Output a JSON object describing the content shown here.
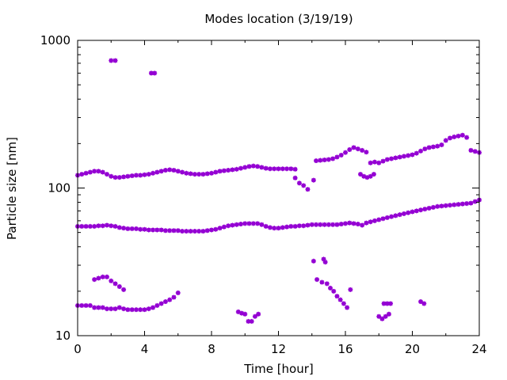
{
  "chart_data": {
    "type": "scatter",
    "title": "Modes location (3/19/19)",
    "xlabel": "Time [hour]",
    "ylabel": "Particle size [nm]",
    "xlim": [
      0,
      24
    ],
    "ylim": [
      10,
      1000
    ],
    "y_scale": "log",
    "grid": false,
    "legend": "none",
    "x_ticks": [
      0,
      4,
      8,
      12,
      16,
      20,
      24
    ],
    "x_tick_labels": [
      "0",
      "4",
      "8",
      "12",
      "16",
      "20",
      "24"
    ],
    "y_ticks": [
      10,
      100,
      1000
    ],
    "y_tick_labels": [
      "10",
      "100",
      "1000"
    ],
    "marker_color": "#9400d3",
    "series": [
      {
        "x": [
          0.0,
          0.25,
          0.5,
          0.75,
          1.0,
          1.25,
          1.5,
          1.75,
          2.0,
          2.25,
          2.5,
          2.75,
          3.0,
          3.25,
          3.5,
          3.75,
          4.0,
          4.25,
          4.5,
          4.75,
          5.0,
          5.25,
          5.5,
          5.75,
          6.0,
          6.25,
          6.5,
          6.75,
          7.0,
          7.25,
          7.5,
          7.75,
          8.0,
          8.25,
          8.5,
          8.75,
          9.0,
          9.25,
          9.5,
          9.75,
          10.0,
          10.25,
          10.5,
          10.75,
          11.0,
          11.25,
          11.5,
          11.75,
          12.0,
          12.25,
          12.5,
          12.75,
          13.0,
          13.25,
          13.5,
          13.75,
          14.0,
          14.25,
          14.5,
          14.75,
          15.0,
          15.25,
          15.5,
          15.75,
          16.0,
          16.25,
          16.5,
          16.75,
          17.0,
          17.25,
          17.5,
          17.75,
          18.0,
          18.25,
          18.5,
          18.75,
          19.0,
          19.25,
          19.5,
          19.75,
          20.0,
          20.25,
          20.5,
          20.75,
          21.0,
          21.25,
          21.5,
          21.75,
          22.0,
          22.25,
          22.5,
          22.75,
          23.0,
          23.25,
          23.5,
          23.75,
          24.0
        ],
        "y": [
          55,
          55,
          55,
          55,
          55,
          55.5,
          55.5,
          56,
          55.5,
          55,
          54,
          53.5,
          53,
          53,
          53,
          52.5,
          52.5,
          52,
          52,
          52,
          52,
          51.5,
          51.5,
          51.5,
          51.5,
          51,
          51,
          51,
          51,
          51,
          51,
          51.5,
          52,
          52.5,
          53.5,
          54.5,
          55.5,
          56,
          56.5,
          57,
          57.5,
          57.5,
          57.5,
          57.5,
          56.5,
          55,
          54,
          53.5,
          53.5,
          54,
          54.5,
          55,
          55,
          55.5,
          55.5,
          56,
          56.5,
          56.5,
          56.5,
          56.5,
          56.5,
          56.5,
          56.5,
          57,
          57.5,
          58,
          57.5,
          57,
          56,
          58,
          59,
          60,
          61,
          62,
          63,
          64,
          65,
          66,
          67,
          68,
          69,
          70,
          71,
          72,
          73,
          74,
          75,
          75.5,
          76,
          76.5,
          77,
          77.5,
          78,
          78.5,
          79,
          81,
          83
        ]
      },
      {
        "x": [
          0.0,
          0.25,
          0.5,
          0.75,
          1.0,
          1.25,
          1.5,
          1.75,
          2.0,
          2.25,
          2.5,
          2.75,
          3.0,
          3.25,
          3.5,
          3.75,
          4.0,
          4.25,
          4.5,
          4.75,
          5.0,
          5.25,
          5.5,
          5.75,
          6.0,
          6.25,
          6.5,
          6.75,
          7.0,
          7.25,
          7.5,
          7.75,
          8.0,
          8.25,
          8.5,
          8.75,
          9.0,
          9.25,
          9.5,
          9.75,
          10.0,
          10.25,
          10.5,
          10.75,
          11.0,
          11.25,
          11.5,
          11.75,
          12.0,
          12.25,
          12.5,
          12.75,
          13.0
        ],
        "y": [
          122,
          124,
          126,
          128,
          130,
          130,
          128,
          124,
          120,
          118,
          118,
          119,
          120,
          121,
          122,
          122,
          123,
          124,
          126,
          128,
          130,
          132,
          133,
          132,
          130,
          128,
          126,
          125,
          124,
          124,
          124,
          125,
          126,
          128,
          130,
          131,
          132,
          133,
          134,
          136,
          138,
          140,
          141,
          140,
          138,
          136,
          135,
          135,
          135,
          135,
          135,
          135,
          134
        ]
      },
      {
        "x": [
          13.0,
          13.25,
          13.5,
          13.75,
          14.1
        ],
        "y": [
          117,
          108,
          104,
          98,
          113
        ]
      },
      {
        "x": [
          14.25,
          14.5,
          14.75,
          15.0,
          15.25,
          15.5,
          15.75,
          16.0,
          16.25,
          16.5,
          16.75,
          17.0,
          17.25,
          17.5,
          17.75,
          18.0,
          18.25,
          18.5,
          18.75,
          19.0,
          19.25,
          19.5,
          19.75,
          20.0,
          20.25,
          20.5,
          20.75,
          21.0,
          21.25,
          21.5,
          21.75,
          22.0,
          22.25,
          22.5,
          22.75,
          23.0,
          23.25,
          23.5,
          23.75,
          24.0
        ],
        "y": [
          153,
          154,
          155,
          156,
          158,
          162,
          167,
          174,
          182,
          188,
          184,
          180,
          175,
          148,
          150,
          148,
          152,
          156,
          158,
          160,
          162,
          164,
          166,
          168,
          172,
          178,
          184,
          188,
          190,
          192,
          196,
          210,
          218,
          222,
          225,
          228,
          220,
          180,
          177,
          174
        ]
      },
      {
        "x": [
          16.9,
          17.1,
          17.3,
          17.5,
          17.7
        ],
        "y": [
          124,
          120,
          118,
          120,
          124
        ]
      },
      {
        "x": [
          0.0,
          0.25,
          0.5,
          0.75,
          1.0,
          1.25,
          1.5,
          1.75,
          2.0,
          2.25,
          2.5,
          2.75,
          3.0,
          3.25,
          3.5,
          3.75,
          4.0,
          4.25,
          4.5,
          4.75,
          5.0,
          5.25,
          5.5,
          5.75,
          6.0
        ],
        "y": [
          16,
          16,
          16,
          16,
          15.5,
          15.5,
          15.5,
          15.2,
          15.2,
          15.2,
          15.5,
          15.2,
          15,
          15,
          15,
          15,
          15,
          15.2,
          15.5,
          16,
          16.5,
          17,
          17.5,
          18.2,
          19.5
        ]
      },
      {
        "x": [
          1.0,
          1.25,
          1.5,
          1.75,
          2.0,
          2.25,
          2.5,
          2.75
        ],
        "y": [
          24,
          24.5,
          25,
          25,
          23.5,
          22.5,
          21.5,
          20.5
        ]
      },
      {
        "x": [
          2.0,
          2.25,
          4.4,
          4.6
        ],
        "y": [
          730,
          730,
          600,
          600
        ]
      },
      {
        "x": [
          9.6,
          9.8,
          10.0,
          10.2,
          10.4,
          10.6,
          10.8
        ],
        "y": [
          14.5,
          14.2,
          14,
          12.5,
          12.5,
          13.5,
          14
        ]
      },
      {
        "x": [
          14.1,
          14.3,
          14.7,
          14.8,
          14.6,
          14.9,
          15.1,
          15.3,
          15.5,
          15.7,
          15.9,
          16.1,
          16.3,
          18.0,
          18.2,
          18.4,
          18.6,
          18.3,
          18.5,
          18.7,
          20.5,
          20.7
        ],
        "y": [
          32,
          24,
          33,
          31.5,
          23,
          22.5,
          21,
          20,
          18.5,
          17.5,
          16.5,
          15.5,
          20.5,
          13.5,
          13,
          13.5,
          14,
          16.5,
          16.5,
          16.5,
          17,
          16.5
        ]
      }
    ]
  }
}
